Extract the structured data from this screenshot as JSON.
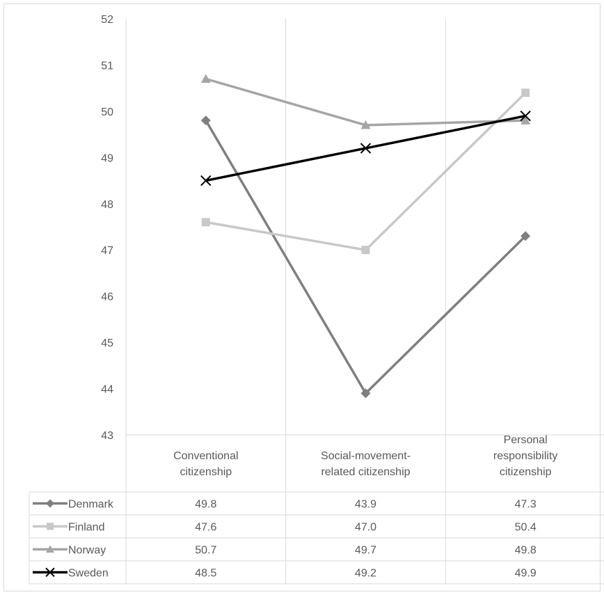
{
  "chart_data": {
    "type": "line",
    "categories": [
      [
        "Conventional",
        "citizenship"
      ],
      [
        "Social-movement-",
        "related citizenship"
      ],
      [
        "Personal",
        "responsibility",
        "citizenship"
      ]
    ],
    "ylim": [
      43,
      52
    ],
    "yticks": [
      "43",
      "44",
      "45",
      "46",
      "47",
      "48",
      "49",
      "50",
      "51",
      "52"
    ],
    "grid": "vertical category separators",
    "legend": "data table below plot",
    "series": [
      {
        "name": "Denmark",
        "values": [
          49.8,
          43.9,
          47.3
        ],
        "labels": [
          "49.8",
          "43.9",
          "47.3"
        ],
        "color": "#7f7f7f",
        "marker": "diamond"
      },
      {
        "name": "Finland",
        "values": [
          47.6,
          47.0,
          50.4
        ],
        "labels": [
          "47.6",
          "47.0",
          "50.4"
        ],
        "color": "#c8c8c8",
        "marker": "square"
      },
      {
        "name": "Norway",
        "values": [
          50.7,
          49.7,
          49.8
        ],
        "labels": [
          "50.7",
          "49.7",
          "49.8"
        ],
        "color": "#a5a5a5",
        "marker": "triangle"
      },
      {
        "name": "Sweden",
        "values": [
          48.5,
          49.2,
          49.9
        ],
        "labels": [
          "48.5",
          "49.2",
          "49.9"
        ],
        "color": "#000000",
        "marker": "x"
      }
    ]
  }
}
